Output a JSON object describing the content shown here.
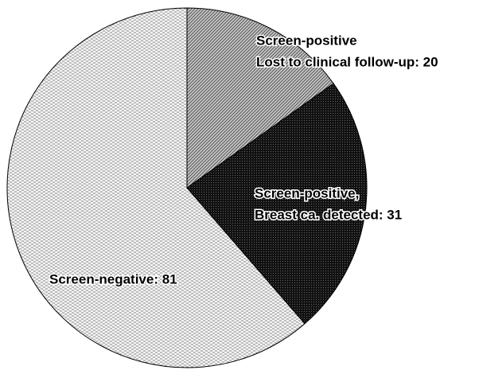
{
  "chart_data": {
    "type": "pie",
    "labels": [
      [
        "Screen-positive",
        "Lost to clinical follow-up: 20"
      ],
      [
        "Screen-positive,",
        "Breast ca. detected: 31"
      ],
      [
        "Screen-negative: 81"
      ]
    ],
    "values": [
      20,
      31,
      81
    ]
  }
}
